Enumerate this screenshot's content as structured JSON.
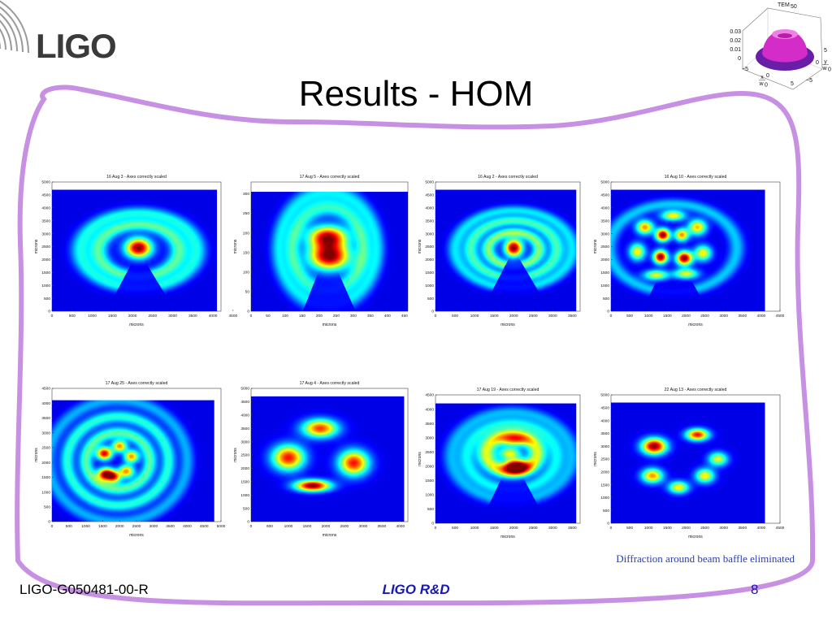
{
  "logo": {
    "text": "LIGO"
  },
  "title": "Results - HOM",
  "caption": "Diffraction around beam baffle eliminated",
  "footer": {
    "doc_id": "LIGO-G050481-00-R",
    "center": "LIGO R&D",
    "page": "8"
  },
  "colors": {
    "frame": "#c890e2",
    "plot_bg": "#00008f",
    "footer_blue": "#1818b4",
    "caption_blue": "#2a3fb0"
  },
  "inset": {
    "title_main": "TEM",
    "title_sub": "50",
    "z_ticks": [
      "0.03",
      "0.02",
      "0.01",
      "0"
    ],
    "x_ticks": [
      "−5",
      "0",
      "5"
    ],
    "y_ticks": [
      "5",
      "0",
      "−5"
    ],
    "x_label_num": "x",
    "x_label_den": "w",
    "x_label_den_sub": "0",
    "y_label_num": "y",
    "y_label_den": "w",
    "y_label_den_sub": "0"
  },
  "chart_data": [
    {
      "type": "heatmap",
      "title": "16 Aug 3 - Axes correctly scaled",
      "xlabel": "microns",
      "ylabel": "microns",
      "xlim": [
        0,
        4200
      ],
      "ylim": [
        0,
        5000
      ],
      "x_ticks": [
        "0",
        "500",
        "1000",
        "1500",
        "2000",
        "2500",
        "3000",
        "3500",
        "4000",
        "4500"
      ],
      "x_tick_values": [
        0,
        500,
        1000,
        1500,
        2000,
        2500,
        3000,
        3500,
        4000,
        4500
      ],
      "y_ticks": [
        "0",
        "500",
        "1000",
        "1500",
        "2000",
        "2500",
        "3000",
        "3500",
        "4000",
        "4500",
        "5000"
      ],
      "y_tick_values": [
        0,
        500,
        1000,
        1500,
        2000,
        2500,
        3000,
        3500,
        4000,
        4500,
        5000
      ],
      "image_extent": {
        "x": [
          0,
          4100
        ],
        "y": [
          0,
          4700
        ]
      },
      "pattern": "centered spot with diffraction rings",
      "features": [
        {
          "kind": "spot",
          "x": 2150,
          "y": 2450,
          "sx": 230,
          "sy": 270,
          "peak": 1.0
        },
        {
          "kind": "ring",
          "x": 2150,
          "y": 2350,
          "r": 1000,
          "w": 170,
          "peak": 0.4,
          "gap_from": -1.9,
          "gap_to": -1.2
        },
        {
          "kind": "ring",
          "x": 2150,
          "y": 2350,
          "r": 1450,
          "w": 170,
          "peak": 0.32,
          "gap_from": -1.9,
          "gap_to": -1.2
        }
      ]
    },
    {
      "type": "heatmap",
      "title": "17 Aug 5 - Axes correctly scaled",
      "xlabel": "microns",
      "ylabel": "microns",
      "xlim": [
        0,
        460
      ],
      "ylim": [
        0,
        330
      ],
      "x_ticks": [
        "0",
        "50",
        "100",
        "150",
        "200",
        "250",
        "300",
        "350",
        "400",
        "450"
      ],
      "x_tick_values": [
        0,
        50,
        100,
        150,
        200,
        250,
        300,
        350,
        400,
        450
      ],
      "y_ticks": [
        "0",
        "50",
        "100",
        "150",
        "200",
        "250",
        "300"
      ],
      "y_tick_values": [
        0,
        50,
        100,
        150,
        200,
        250,
        300
      ],
      "image_extent": {
        "x": [
          0,
          460
        ],
        "y": [
          0,
          305
        ]
      },
      "pattern": "two lobes stacked vertically with diffraction rings",
      "features": [
        {
          "kind": "spot",
          "x": 225,
          "y": 190,
          "sx": 40,
          "sy": 20,
          "peak": 0.9
        },
        {
          "kind": "spot",
          "x": 230,
          "y": 140,
          "sx": 42,
          "sy": 24,
          "peak": 1.0
        },
        {
          "kind": "ring",
          "x": 225,
          "y": 160,
          "r": 105,
          "w": 16,
          "peak": 0.35,
          "gap_from": -2.0,
          "gap_to": -1.1
        },
        {
          "kind": "ring",
          "x": 225,
          "y": 160,
          "r": 145,
          "w": 16,
          "peak": 0.28,
          "gap_from": -2.0,
          "gap_to": -1.1
        }
      ]
    },
    {
      "type": "heatmap",
      "title": "16 Aug 2 - Axes correctly scaled",
      "xlabel": "microns",
      "ylabel": "microns",
      "xlim": [
        0,
        3700
      ],
      "ylim": [
        0,
        5000
      ],
      "x_ticks": [
        "0",
        "500",
        "1000",
        "1500",
        "2000",
        "2500",
        "3000",
        "3500"
      ],
      "x_tick_values": [
        0,
        500,
        1000,
        1500,
        2000,
        2500,
        3000,
        3500
      ],
      "y_ticks": [
        "0",
        "500",
        "1000",
        "1500",
        "2000",
        "2500",
        "3000",
        "3500",
        "4000",
        "4500",
        "5000"
      ],
      "y_tick_values": [
        0,
        500,
        1000,
        1500,
        2000,
        2500,
        3000,
        3500,
        4000,
        4500,
        5000
      ],
      "image_extent": {
        "x": [
          0,
          3600
        ],
        "y": [
          0,
          4700
        ]
      },
      "pattern": "small centered spot with strong diffraction rings",
      "features": [
        {
          "kind": "spot",
          "x": 2000,
          "y": 2450,
          "sx": 160,
          "sy": 240,
          "peak": 1.0
        },
        {
          "kind": "ring",
          "x": 2000,
          "y": 2400,
          "r": 650,
          "w": 130,
          "peak": 0.45,
          "gap_from": -1.9,
          "gap_to": -1.2
        },
        {
          "kind": "ring",
          "x": 2000,
          "y": 2400,
          "r": 1100,
          "w": 140,
          "peak": 0.38,
          "gap_from": -1.9,
          "gap_to": -1.2
        },
        {
          "kind": "ring",
          "x": 2000,
          "y": 2400,
          "r": 1500,
          "w": 140,
          "peak": 0.28,
          "gap_from": -1.9,
          "gap_to": -1.2
        }
      ]
    },
    {
      "type": "heatmap",
      "title": "16 Aug 10 - Axes correctly scaled",
      "xlabel": "microns",
      "ylabel": "microns",
      "xlim": [
        0,
        4500
      ],
      "ylim": [
        0,
        5000
      ],
      "x_ticks": [
        "0",
        "500",
        "1000",
        "1500",
        "2000",
        "2500",
        "3000",
        "3500",
        "4000",
        "4500"
      ],
      "x_tick_values": [
        0,
        500,
        1000,
        1500,
        2000,
        2500,
        3000,
        3500,
        4000,
        4500
      ],
      "y_ticks": [
        "0",
        "500",
        "1000",
        "1500",
        "2000",
        "2500",
        "3000",
        "3500",
        "4000",
        "4500",
        "5000"
      ],
      "y_tick_values": [
        0,
        500,
        1000,
        1500,
        2000,
        2500,
        3000,
        3500,
        4000,
        4500,
        5000
      ],
      "image_extent": {
        "x": [
          0,
          4100
        ],
        "y": [
          0,
          4700
        ]
      },
      "pattern": "four inner lobes surrounded by an outer ring of lobes",
      "features": [
        {
          "kind": "spot",
          "x": 1380,
          "y": 2950,
          "sx": 130,
          "sy": 170,
          "peak": 1.0
        },
        {
          "kind": "spot",
          "x": 1880,
          "y": 2950,
          "sx": 130,
          "sy": 170,
          "peak": 0.7
        },
        {
          "kind": "spot",
          "x": 1320,
          "y": 2100,
          "sx": 130,
          "sy": 180,
          "peak": 1.0
        },
        {
          "kind": "spot",
          "x": 1950,
          "y": 2050,
          "sx": 150,
          "sy": 190,
          "peak": 1.0
        },
        {
          "kind": "spot",
          "x": 900,
          "y": 3250,
          "sx": 160,
          "sy": 190,
          "peak": 0.7
        },
        {
          "kind": "spot",
          "x": 1650,
          "y": 3700,
          "sx": 220,
          "sy": 140,
          "peak": 0.6
        },
        {
          "kind": "spot",
          "x": 2300,
          "y": 3250,
          "sx": 170,
          "sy": 210,
          "peak": 0.65
        },
        {
          "kind": "spot",
          "x": 2450,
          "y": 2250,
          "sx": 160,
          "sy": 210,
          "peak": 0.6
        },
        {
          "kind": "spot",
          "x": 2000,
          "y": 1450,
          "sx": 230,
          "sy": 140,
          "peak": 0.55
        },
        {
          "kind": "spot",
          "x": 1200,
          "y": 1400,
          "sx": 230,
          "sy": 140,
          "peak": 0.55
        },
        {
          "kind": "spot",
          "x": 700,
          "y": 2300,
          "sx": 150,
          "sy": 230,
          "peak": 0.6
        },
        {
          "kind": "ring",
          "x": 1650,
          "y": 2450,
          "r": 1700,
          "w": 150,
          "peak": 0.25,
          "gap_from": -1.9,
          "gap_to": -1.2
        }
      ]
    },
    {
      "type": "heatmap",
      "title": "17 Aug 25 - Axes correctly scaled",
      "xlabel": "microns",
      "ylabel": "microns",
      "xlim": [
        0,
        5000
      ],
      "ylim": [
        0,
        4500
      ],
      "x_ticks": [
        "0",
        "500",
        "1000",
        "1500",
        "2000",
        "2500",
        "3000",
        "3500",
        "4000",
        "4500",
        "5000"
      ],
      "x_tick_values": [
        0,
        500,
        1000,
        1500,
        2000,
        2500,
        3000,
        3500,
        4000,
        4500,
        5000
      ],
      "y_ticks": [
        "0",
        "500",
        "1000",
        "1500",
        "2000",
        "2500",
        "3000",
        "3500",
        "4000",
        "4500"
      ],
      "y_tick_values": [
        0,
        500,
        1000,
        1500,
        2000,
        2500,
        3000,
        3500,
        4000,
        4500
      ],
      "image_extent": {
        "x": [
          0,
          4800
        ],
        "y": [
          0,
          4100
        ]
      },
      "pattern": "six-lobe petal mode with concentric rings",
      "features": [
        {
          "kind": "spot",
          "x": 1600,
          "y": 1600,
          "sx": 170,
          "sy": 150,
          "peak": 1.0
        },
        {
          "kind": "spot",
          "x": 1550,
          "y": 2300,
          "sx": 160,
          "sy": 150,
          "peak": 0.9
        },
        {
          "kind": "spot",
          "x": 2000,
          "y": 2550,
          "sx": 150,
          "sy": 140,
          "peak": 0.7
        },
        {
          "kind": "spot",
          "x": 2350,
          "y": 2200,
          "sx": 150,
          "sy": 150,
          "peak": 0.7
        },
        {
          "kind": "spot",
          "x": 2200,
          "y": 1700,
          "sx": 160,
          "sy": 150,
          "peak": 0.7
        },
        {
          "kind": "spot",
          "x": 1850,
          "y": 1500,
          "sx": 140,
          "sy": 140,
          "peak": 0.6
        },
        {
          "kind": "ring",
          "x": 1950,
          "y": 2050,
          "r": 950,
          "w": 150,
          "peak": 0.4,
          "gap_from": 9,
          "gap_to": 9
        },
        {
          "kind": "ring",
          "x": 1950,
          "y": 2050,
          "r": 1500,
          "w": 150,
          "peak": 0.35,
          "gap_from": 9,
          "gap_to": 9
        },
        {
          "kind": "ring",
          "x": 1950,
          "y": 2050,
          "r": 2050,
          "w": 150,
          "peak": 0.22,
          "gap_from": 9,
          "gap_to": 9
        }
      ]
    },
    {
      "type": "heatmap",
      "title": "17 Aug 4 - Axes correctly scaled",
      "xlabel": "microns",
      "ylabel": "microns",
      "xlim": [
        0,
        4200
      ],
      "ylim": [
        0,
        5000
      ],
      "x_ticks": [
        "0",
        "500",
        "1000",
        "1500",
        "2000",
        "2500",
        "3000",
        "3500",
        "4000"
      ],
      "x_tick_values": [
        0,
        500,
        1000,
        1500,
        2000,
        2500,
        3000,
        3500,
        4000
      ],
      "y_ticks": [
        "0",
        "500",
        "1000",
        "1500",
        "2000",
        "2500",
        "3000",
        "3500",
        "4000",
        "4500",
        "5000"
      ],
      "y_tick_values": [
        0,
        500,
        1000,
        1500,
        2000,
        2500,
        3000,
        3500,
        4000,
        4500,
        5000
      ],
      "image_extent": {
        "x": [
          0,
          4100
        ],
        "y": [
          0,
          4700
        ]
      },
      "pattern": "four lobes around the center",
      "features": [
        {
          "kind": "spot",
          "x": 1850,
          "y": 3500,
          "sx": 330,
          "sy": 240,
          "peak": 0.8
        },
        {
          "kind": "spot",
          "x": 1000,
          "y": 2400,
          "sx": 300,
          "sy": 330,
          "peak": 0.85
        },
        {
          "kind": "spot",
          "x": 2750,
          "y": 2200,
          "sx": 280,
          "sy": 330,
          "peak": 0.85
        },
        {
          "kind": "spot",
          "x": 1650,
          "y": 1350,
          "sx": 330,
          "sy": 150,
          "peak": 1.0
        }
      ]
    },
    {
      "type": "heatmap",
      "title": "17 Aug 19 - Axes correctly scaled",
      "xlabel": "microns",
      "ylabel": "microns",
      "xlim": [
        0,
        3700
      ],
      "ylim": [
        0,
        4500
      ],
      "x_ticks": [
        "0",
        "500",
        "1000",
        "1500",
        "2000",
        "2500",
        "3000",
        "3500"
      ],
      "x_tick_values": [
        0,
        500,
        1000,
        1500,
        2000,
        2500,
        3000,
        3500
      ],
      "y_ticks": [
        "0",
        "500",
        "1000",
        "1500",
        "2000",
        "2500",
        "3000",
        "3500",
        "4000",
        "4500"
      ],
      "y_tick_values": [
        0,
        500,
        1000,
        1500,
        2000,
        2500,
        3000,
        3500,
        4000,
        4500
      ],
      "image_extent": {
        "x": [
          0,
          3600
        ],
        "y": [
          0,
          4200
        ]
      },
      "pattern": "bright lower lobe inside a broken ring with outer diffraction",
      "features": [
        {
          "kind": "spot",
          "x": 2050,
          "y": 2000,
          "sx": 220,
          "sy": 170,
          "peak": 1.0
        },
        {
          "kind": "spot",
          "x": 1900,
          "y": 2450,
          "sx": 200,
          "sy": 150,
          "peak": 0.55
        },
        {
          "kind": "spot",
          "x": 2000,
          "y": 2900,
          "sx": 250,
          "sy": 150,
          "peak": 0.5
        },
        {
          "kind": "ring",
          "x": 1950,
          "y": 2450,
          "r": 650,
          "w": 170,
          "peak": 0.55,
          "gap_from": 9,
          "gap_to": 9
        },
        {
          "kind": "ring",
          "x": 1950,
          "y": 2350,
          "r": 1150,
          "w": 160,
          "peak": 0.3,
          "gap_from": -1.9,
          "gap_to": -1.2
        },
        {
          "kind": "ring",
          "x": 1950,
          "y": 2350,
          "r": 1550,
          "w": 150,
          "peak": 0.22,
          "gap_from": -1.9,
          "gap_to": -1.2
        }
      ]
    },
    {
      "type": "heatmap",
      "title": "22 Aug 13 - Axes correctly scaled",
      "xlabel": "microns",
      "ylabel": "microns",
      "xlim": [
        0,
        4500
      ],
      "ylim": [
        0,
        5000
      ],
      "x_ticks": [
        "0",
        "500",
        "1000",
        "1500",
        "2000",
        "2500",
        "3000",
        "3500",
        "4000",
        "4500"
      ],
      "x_tick_values": [
        0,
        500,
        1000,
        1500,
        2000,
        2500,
        3000,
        3500,
        4000,
        4500
      ],
      "y_ticks": [
        "0",
        "500",
        "1000",
        "1500",
        "2000",
        "2500",
        "3000",
        "3500",
        "4000",
        "4500",
        "5000"
      ],
      "y_tick_values": [
        0,
        500,
        1000,
        1500,
        2000,
        2500,
        3000,
        3500,
        4000,
        4500,
        5000
      ],
      "image_extent": {
        "x": [
          0,
          4100
        ],
        "y": [
          0,
          4700
        ]
      },
      "pattern": "six-lobe ring mode",
      "features": [
        {
          "kind": "spot",
          "x": 1150,
          "y": 3000,
          "sx": 230,
          "sy": 220,
          "peak": 1.0
        },
        {
          "kind": "spot",
          "x": 2300,
          "y": 3450,
          "sx": 210,
          "sy": 160,
          "peak": 0.85
        },
        {
          "kind": "spot",
          "x": 2850,
          "y": 2500,
          "sx": 180,
          "sy": 190,
          "peak": 0.55
        },
        {
          "kind": "spot",
          "x": 1100,
          "y": 1850,
          "sx": 200,
          "sy": 200,
          "peak": 0.7
        },
        {
          "kind": "spot",
          "x": 2500,
          "y": 1850,
          "sx": 180,
          "sy": 200,
          "peak": 0.6
        },
        {
          "kind": "spot",
          "x": 1800,
          "y": 1400,
          "sx": 190,
          "sy": 170,
          "peak": 0.6
        }
      ]
    }
  ]
}
